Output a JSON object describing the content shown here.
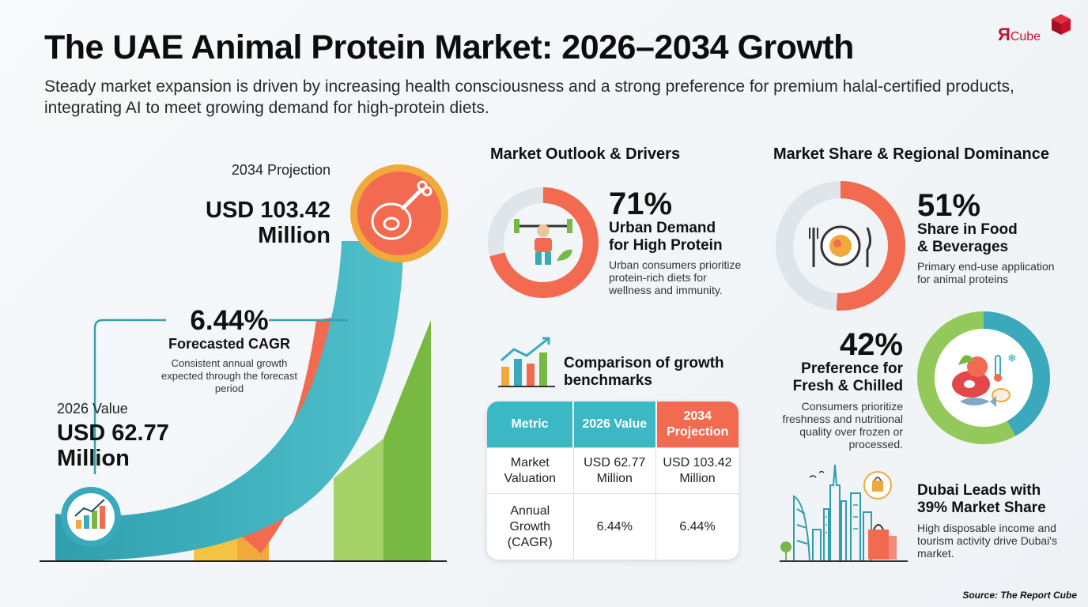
{
  "header": {
    "title": "The UAE Animal Protein Market: 2026–2034 Growth",
    "subtitle": "Steady market expansion is driven by increasing health consciousness and a strong preference for premium halal-certified products, integrating AI to meet growing demand for high-protein diets."
  },
  "brand": {
    "logo_main": "Я",
    "logo_sub": "Cube",
    "color": "#c8102e"
  },
  "growth": {
    "start_label": "2026 Value",
    "start_value": "USD 62.77 Million",
    "end_label": "2034 Projection",
    "end_value": "USD 103.42 Million",
    "cagr_value": "6.44%",
    "cagr_label": "Forecasted CAGR",
    "cagr_desc": "Consistent annual growth expected through the forecast period"
  },
  "outlook": {
    "heading": "Market Outlook & Drivers",
    "pct": "71%",
    "label": "Urban Demand for High Protein",
    "desc": "Urban consumers prioritize protein-rich diets for wellness and immunity."
  },
  "benchmarks": {
    "heading": "Comparison of growth benchmarks",
    "columns": [
      "Metric",
      "2026 Value",
      "2034 Projection"
    ],
    "rows": [
      [
        "Market Valuation",
        "USD 62.77 Million",
        "USD 103.42 Million"
      ],
      [
        "Annual Growth (CAGR)",
        "6.44%",
        "6.44%"
      ]
    ]
  },
  "share": {
    "heading": "Market Share & Regional Dominance",
    "food_pct": "51%",
    "food_label": "Share in Food & Beverages",
    "food_desc": "Primary end-use application for animal proteins",
    "fresh_pct": "42%",
    "fresh_label": "Preference for Fresh & Chilled",
    "fresh_desc": "Consumers prioritize freshness and nutritional quality over frozen or processed.",
    "dubai_label": "Dubai Leads with 39% Market Share",
    "dubai_desc": "High disposable income and tourism activity drive Dubai's market."
  },
  "source": "Source: The Report Cube",
  "chart_data": [
    {
      "type": "bar",
      "title": "",
      "categories": [
        "2026",
        "2034"
      ],
      "values": [
        62.77,
        103.42
      ],
      "unit": "USD Million",
      "cagr_percent": 6.44
    },
    {
      "type": "pie",
      "labels": [
        "Urban Demand for High Protein",
        ""
      ],
      "values": [
        71,
        29
      ],
      "colors": [
        "#f26a4f",
        "#dfe5e8"
      ]
    },
    {
      "type": "pie",
      "labels": [
        "Share in Food & Beverages",
        ""
      ],
      "values": [
        51,
        49
      ],
      "colors": [
        "#f26a4f",
        "#dfe5e8"
      ]
    },
    {
      "type": "pie",
      "labels": [
        "Preference for Fresh & Chilled",
        ""
      ],
      "values": [
        42,
        58
      ],
      "colors": [
        "#3aa9bb",
        "#93c95a"
      ]
    }
  ]
}
